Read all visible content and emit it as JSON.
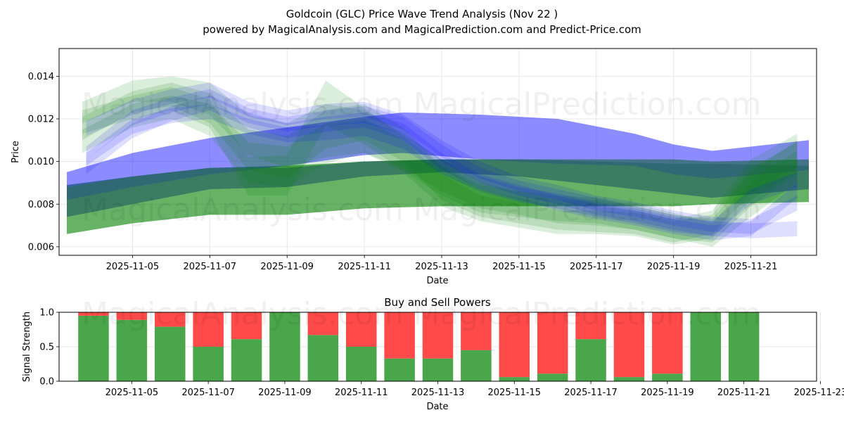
{
  "title_line1": "Goldcoin (GLC) Price Wave Trend Analysis (Nov 22 )",
  "title_line2": "powered by MagicalAnalysis.com and MagicalPrediction.com and Predict-Price.com",
  "watermarks": [
    "MagicalAnalysis.com",
    "MagicalPrediction.com"
  ],
  "chart_data": [
    {
      "type": "area",
      "title": "Goldcoin (GLC) Price Wave Trend Analysis (Nov 22 )",
      "xlabel": "Date",
      "ylabel": "Price",
      "xlim": [
        -0.9,
        18.7
      ],
      "ylim": [
        0.0056,
        0.0153
      ],
      "x_ticks": [
        {
          "x": 1,
          "label": "2025-11-05"
        },
        {
          "x": 3,
          "label": "2025-11-07"
        },
        {
          "x": 5,
          "label": "2025-11-09"
        },
        {
          "x": 7,
          "label": "2025-11-11"
        },
        {
          "x": 9,
          "label": "2025-11-13"
        },
        {
          "x": 11,
          "label": "2025-11-15"
        },
        {
          "x": 13,
          "label": "2025-11-17"
        },
        {
          "x": 15,
          "label": "2025-11-19"
        },
        {
          "x": 17,
          "label": "2025-11-21"
        }
      ],
      "y_ticks": [
        {
          "y": 0.006,
          "label": "0.006"
        },
        {
          "y": 0.008,
          "label": "0.008"
        },
        {
          "y": 0.01,
          "label": "0.010"
        },
        {
          "y": 0.012,
          "label": "0.012"
        },
        {
          "y": 0.014,
          "label": "0.014"
        }
      ],
      "grid": true,
      "bands": [
        {
          "color": "green",
          "opacity": 0.6,
          "x": [
            -0.7,
            1,
            3,
            5,
            7,
            9,
            11,
            13,
            15,
            16,
            18.5
          ],
          "lower": [
            0.0066,
            0.0071,
            0.0075,
            0.0075,
            0.0078,
            0.0079,
            0.0079,
            0.0079,
            0.0079,
            0.008,
            0.0081
          ],
          "upper": [
            0.0089,
            0.0093,
            0.0097,
            0.0098,
            0.01,
            0.0101,
            0.0101,
            0.01,
            0.0099,
            0.0099,
            0.0098
          ]
        },
        {
          "color": "blue",
          "opacity": 0.45,
          "x": [
            -0.7,
            1,
            3,
            5,
            7,
            8,
            10,
            12,
            14,
            15,
            16,
            18.5
          ],
          "lower": [
            0.0082,
            0.0088,
            0.0094,
            0.0098,
            0.0103,
            0.0104,
            0.0101,
            0.0099,
            0.0098,
            0.0094,
            0.0092,
            0.0096
          ],
          "upper": [
            0.0095,
            0.0104,
            0.0111,
            0.0116,
            0.0121,
            0.0123,
            0.0122,
            0.012,
            0.0113,
            0.0108,
            0.0105,
            0.011
          ]
        },
        {
          "color": "#2e6b62",
          "opacity": 0.75,
          "x": [
            -0.7,
            1,
            3,
            5,
            7,
            9,
            11,
            13,
            15,
            16,
            18.5
          ],
          "lower": [
            0.0074,
            0.008,
            0.0087,
            0.0088,
            0.0093,
            0.0095,
            0.0093,
            0.0089,
            0.0085,
            0.0083,
            0.0087
          ],
          "upper": [
            0.0088,
            0.0093,
            0.0097,
            0.0097,
            0.01,
            0.0101,
            0.0101,
            0.0101,
            0.0101,
            0.01,
            0.0101
          ]
        },
        {
          "color": "green",
          "opacity": 0.14,
          "x": [
            -0.3,
            1,
            2,
            3,
            4,
            5,
            6,
            7,
            8,
            9,
            10,
            11,
            12,
            13,
            14,
            15,
            16,
            17,
            18.2
          ],
          "lower": [
            0.0118,
            0.0128,
            0.0128,
            0.0122,
            0.0103,
            0.0097,
            0.0102,
            0.0104,
            0.0097,
            0.0086,
            0.0078,
            0.0075,
            0.0071,
            0.007,
            0.0068,
            0.0064,
            0.0062,
            0.0079,
            0.0094
          ],
          "upper": [
            0.0128,
            0.0138,
            0.014,
            0.0137,
            0.0122,
            0.0118,
            0.0127,
            0.0124,
            0.0113,
            0.0101,
            0.009,
            0.0086,
            0.0082,
            0.0082,
            0.0079,
            0.0075,
            0.0073,
            0.0095,
            0.011
          ]
        },
        {
          "color": "green",
          "opacity": 0.14,
          "x": [
            -0.3,
            1,
            2,
            3,
            4,
            5,
            6,
            7,
            8,
            9,
            10,
            11,
            12,
            13,
            14,
            15,
            16,
            17,
            18.2
          ],
          "lower": [
            0.011,
            0.0123,
            0.0126,
            0.0118,
            0.0096,
            0.0092,
            0.0106,
            0.011,
            0.01,
            0.0082,
            0.0074,
            0.0071,
            0.0068,
            0.0067,
            0.0066,
            0.0062,
            0.0066,
            0.0085,
            0.0098
          ],
          "upper": [
            0.0121,
            0.0133,
            0.0137,
            0.0132,
            0.0115,
            0.0112,
            0.0124,
            0.0127,
            0.0116,
            0.0098,
            0.0087,
            0.0083,
            0.0079,
            0.0079,
            0.0077,
            0.0073,
            0.0077,
            0.0101,
            0.0113
          ]
        },
        {
          "color": "green",
          "opacity": 0.14,
          "x": [
            -0.3,
            1,
            2,
            3,
            4,
            5,
            6,
            7,
            8,
            9,
            10,
            11,
            12,
            13,
            14,
            15,
            16,
            17,
            18.2
          ],
          "lower": [
            0.0104,
            0.0116,
            0.012,
            0.0112,
            0.009,
            0.0088,
            0.0099,
            0.0104,
            0.0095,
            0.0079,
            0.0072,
            0.0069,
            0.0066,
            0.0066,
            0.0065,
            0.0061,
            0.0064,
            0.0082,
            0.0095
          ],
          "upper": [
            0.0115,
            0.0127,
            0.0131,
            0.0127,
            0.0109,
            0.0107,
            0.0118,
            0.012,
            0.011,
            0.0094,
            0.0084,
            0.0081,
            0.0077,
            0.0077,
            0.0076,
            0.0072,
            0.0075,
            0.0097,
            0.0109
          ]
        },
        {
          "color": "green",
          "opacity": 0.14,
          "x": [
            -0.3,
            1,
            2,
            3,
            4,
            5,
            6,
            7,
            8,
            9,
            10,
            11,
            12,
            13,
            14,
            15,
            16,
            17,
            18.2
          ],
          "lower": [
            0.0113,
            0.012,
            0.0124,
            0.0116,
            0.0084,
            0.0084,
            0.0117,
            0.0108,
            0.0096,
            0.0084,
            0.0076,
            0.0074,
            0.0072,
            0.0071,
            0.0068,
            0.0064,
            0.006,
            0.0074,
            0.009
          ],
          "upper": [
            0.0124,
            0.0131,
            0.0135,
            0.0129,
            0.0102,
            0.0103,
            0.0138,
            0.0125,
            0.0112,
            0.0098,
            0.0089,
            0.0086,
            0.0084,
            0.0083,
            0.008,
            0.0076,
            0.0071,
            0.0091,
            0.0105
          ]
        },
        {
          "color": "blue",
          "opacity": 0.13,
          "x": [
            -0.2,
            1,
            2,
            3,
            4,
            5,
            6,
            7,
            8,
            9,
            10,
            11,
            12,
            13,
            14,
            15,
            16,
            17,
            18.2
          ],
          "lower": [
            0.0101,
            0.0117,
            0.0123,
            0.0127,
            0.0118,
            0.0114,
            0.0117,
            0.0118,
            0.0113,
            0.01,
            0.009,
            0.0084,
            0.008,
            0.0075,
            0.0072,
            0.0068,
            0.0065,
            0.0064,
            0.0065
          ],
          "upper": [
            0.0107,
            0.0124,
            0.013,
            0.0134,
            0.0125,
            0.0121,
            0.0124,
            0.0126,
            0.0121,
            0.0108,
            0.0097,
            0.0091,
            0.0087,
            0.0083,
            0.0079,
            0.0075,
            0.0072,
            0.0071,
            0.0072
          ]
        },
        {
          "color": "blue",
          "opacity": 0.13,
          "x": [
            -0.2,
            1,
            2,
            3,
            4,
            5,
            6,
            7,
            8,
            9,
            10,
            11,
            12,
            13,
            14,
            15,
            16,
            17,
            18.2
          ],
          "lower": [
            0.0094,
            0.0111,
            0.0119,
            0.0124,
            0.0116,
            0.0111,
            0.0114,
            0.0116,
            0.011,
            0.0096,
            0.0087,
            0.0082,
            0.0077,
            0.0073,
            0.007,
            0.0066,
            0.0063,
            0.0065,
            0.0083
          ],
          "upper": [
            0.0101,
            0.0118,
            0.0126,
            0.0131,
            0.0123,
            0.0118,
            0.0121,
            0.0123,
            0.0118,
            0.0104,
            0.0094,
            0.0089,
            0.0084,
            0.008,
            0.0077,
            0.0073,
            0.007,
            0.0072,
            0.009
          ]
        },
        {
          "color": "blue",
          "opacity": 0.13,
          "x": [
            -0.2,
            1,
            2,
            3,
            4,
            5,
            6,
            7,
            8,
            9,
            10,
            11,
            12,
            13,
            14,
            15,
            16,
            17,
            18.2
          ],
          "lower": [
            0.0112,
            0.0122,
            0.0127,
            0.013,
            0.0121,
            0.0117,
            0.012,
            0.0121,
            0.0115,
            0.0102,
            0.0092,
            0.0086,
            0.0082,
            0.0077,
            0.0074,
            0.007,
            0.0067,
            0.0066,
            0.0077
          ],
          "upper": [
            0.0119,
            0.0129,
            0.0134,
            0.0137,
            0.0128,
            0.0124,
            0.0127,
            0.0128,
            0.0122,
            0.011,
            0.01,
            0.0093,
            0.0089,
            0.0084,
            0.0081,
            0.0077,
            0.0074,
            0.0073,
            0.0084
          ]
        },
        {
          "color": "blue",
          "opacity": 0.13,
          "x": [
            -0.2,
            1,
            2,
            3,
            4,
            5,
            6,
            7,
            8,
            9,
            10,
            11,
            12,
            13,
            14,
            15,
            16,
            17,
            18.2
          ],
          "lower": [
            0.0098,
            0.0113,
            0.0118,
            0.012,
            0.0113,
            0.0109,
            0.011,
            0.0112,
            0.0106,
            0.0094,
            0.0086,
            0.0081,
            0.0078,
            0.0074,
            0.0071,
            0.0067,
            0.0065,
            0.008,
            0.0088
          ],
          "upper": [
            0.0104,
            0.012,
            0.0125,
            0.0127,
            0.012,
            0.0116,
            0.0117,
            0.0119,
            0.0113,
            0.0101,
            0.0093,
            0.0088,
            0.0085,
            0.0081,
            0.0078,
            0.0074,
            0.0072,
            0.0087,
            0.0095
          ]
        }
      ]
    },
    {
      "type": "bar",
      "title": "Buy and Sell Powers",
      "xlabel": "Date",
      "ylabel": "Signal Strength",
      "ylim": [
        0,
        1.0
      ],
      "xlim": [
        -0.9,
        18.9
      ],
      "x_ticks": [
        {
          "x": 1,
          "label": "2025-11-05"
        },
        {
          "x": 3,
          "label": "2025-11-07"
        },
        {
          "x": 5,
          "label": "2025-11-09"
        },
        {
          "x": 7,
          "label": "2025-11-11"
        },
        {
          "x": 9,
          "label": "2025-11-13"
        },
        {
          "x": 11,
          "label": "2025-11-15"
        },
        {
          "x": 13,
          "label": "2025-11-17"
        },
        {
          "x": 15,
          "label": "2025-11-19"
        },
        {
          "x": 17,
          "label": "2025-11-21"
        },
        {
          "x": 19,
          "label": "2025-11-23"
        }
      ],
      "y_ticks": [
        {
          "y": 0.0,
          "label": "0.0"
        },
        {
          "y": 0.5,
          "label": "0.5"
        },
        {
          "y": 1.0,
          "label": "1.0"
        }
      ],
      "grid": true,
      "categories": [
        "2025-11-04",
        "2025-11-05",
        "2025-11-06",
        "2025-11-07",
        "2025-11-08",
        "2025-11-09",
        "2025-11-10",
        "2025-11-11",
        "2025-11-12",
        "2025-11-13",
        "2025-11-14",
        "2025-11-15",
        "2025-11-16",
        "2025-11-17",
        "2025-11-18",
        "2025-11-19",
        "2025-11-20",
        "2025-11-21"
      ],
      "series": [
        {
          "name": "Buy",
          "color": "#4aa64a",
          "values": [
            0.95,
            0.89,
            0.79,
            0.5,
            0.61,
            1.0,
            0.67,
            0.5,
            0.33,
            0.33,
            0.45,
            0.06,
            0.11,
            0.61,
            0.06,
            0.11,
            1.0,
            1.0
          ]
        },
        {
          "name": "Sell",
          "color": "#ff4a4a",
          "values": [
            0.05,
            0.11,
            0.21,
            0.5,
            0.39,
            0.0,
            0.33,
            0.5,
            0.67,
            0.67,
            0.55,
            0.94,
            0.89,
            0.39,
            0.94,
            0.89,
            0.0,
            0.0
          ]
        }
      ]
    }
  ]
}
